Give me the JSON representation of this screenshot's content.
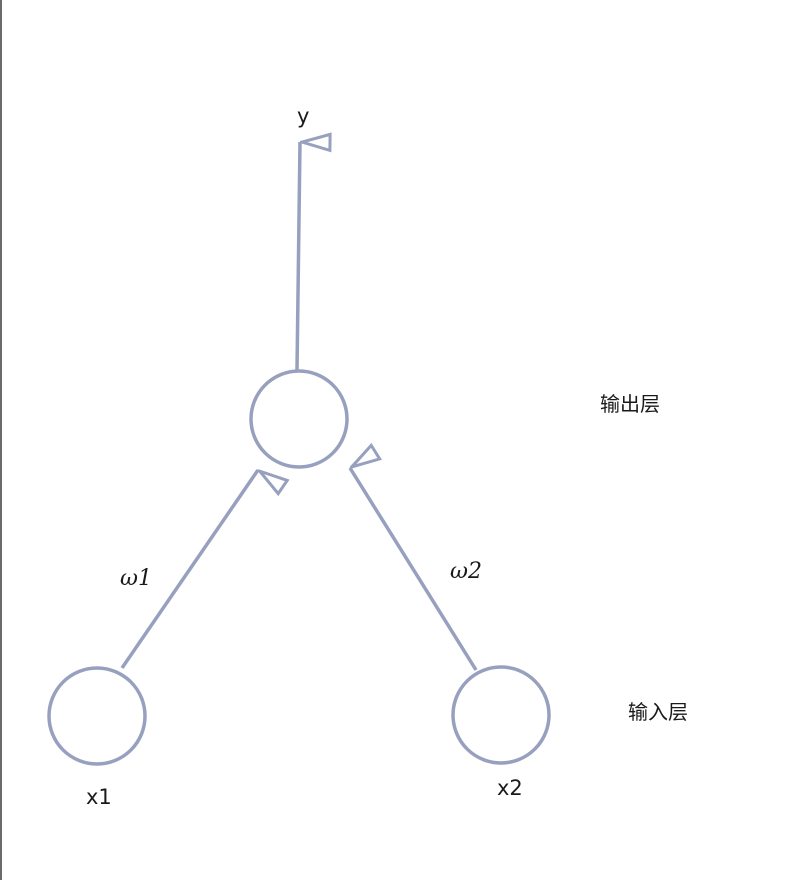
{
  "nodes": {
    "output": {
      "label": "y"
    },
    "input_1": {
      "label": "x1"
    },
    "input_2": {
      "label": "x2"
    }
  },
  "edges": {
    "w1": {
      "label": "ω1"
    },
    "w2": {
      "label": "ω2"
    }
  },
  "layers": {
    "output_label": "输出层",
    "input_label": "输入层"
  },
  "style": {
    "stroke_color": "#97a0be",
    "text_color": "#1a1a1a"
  }
}
